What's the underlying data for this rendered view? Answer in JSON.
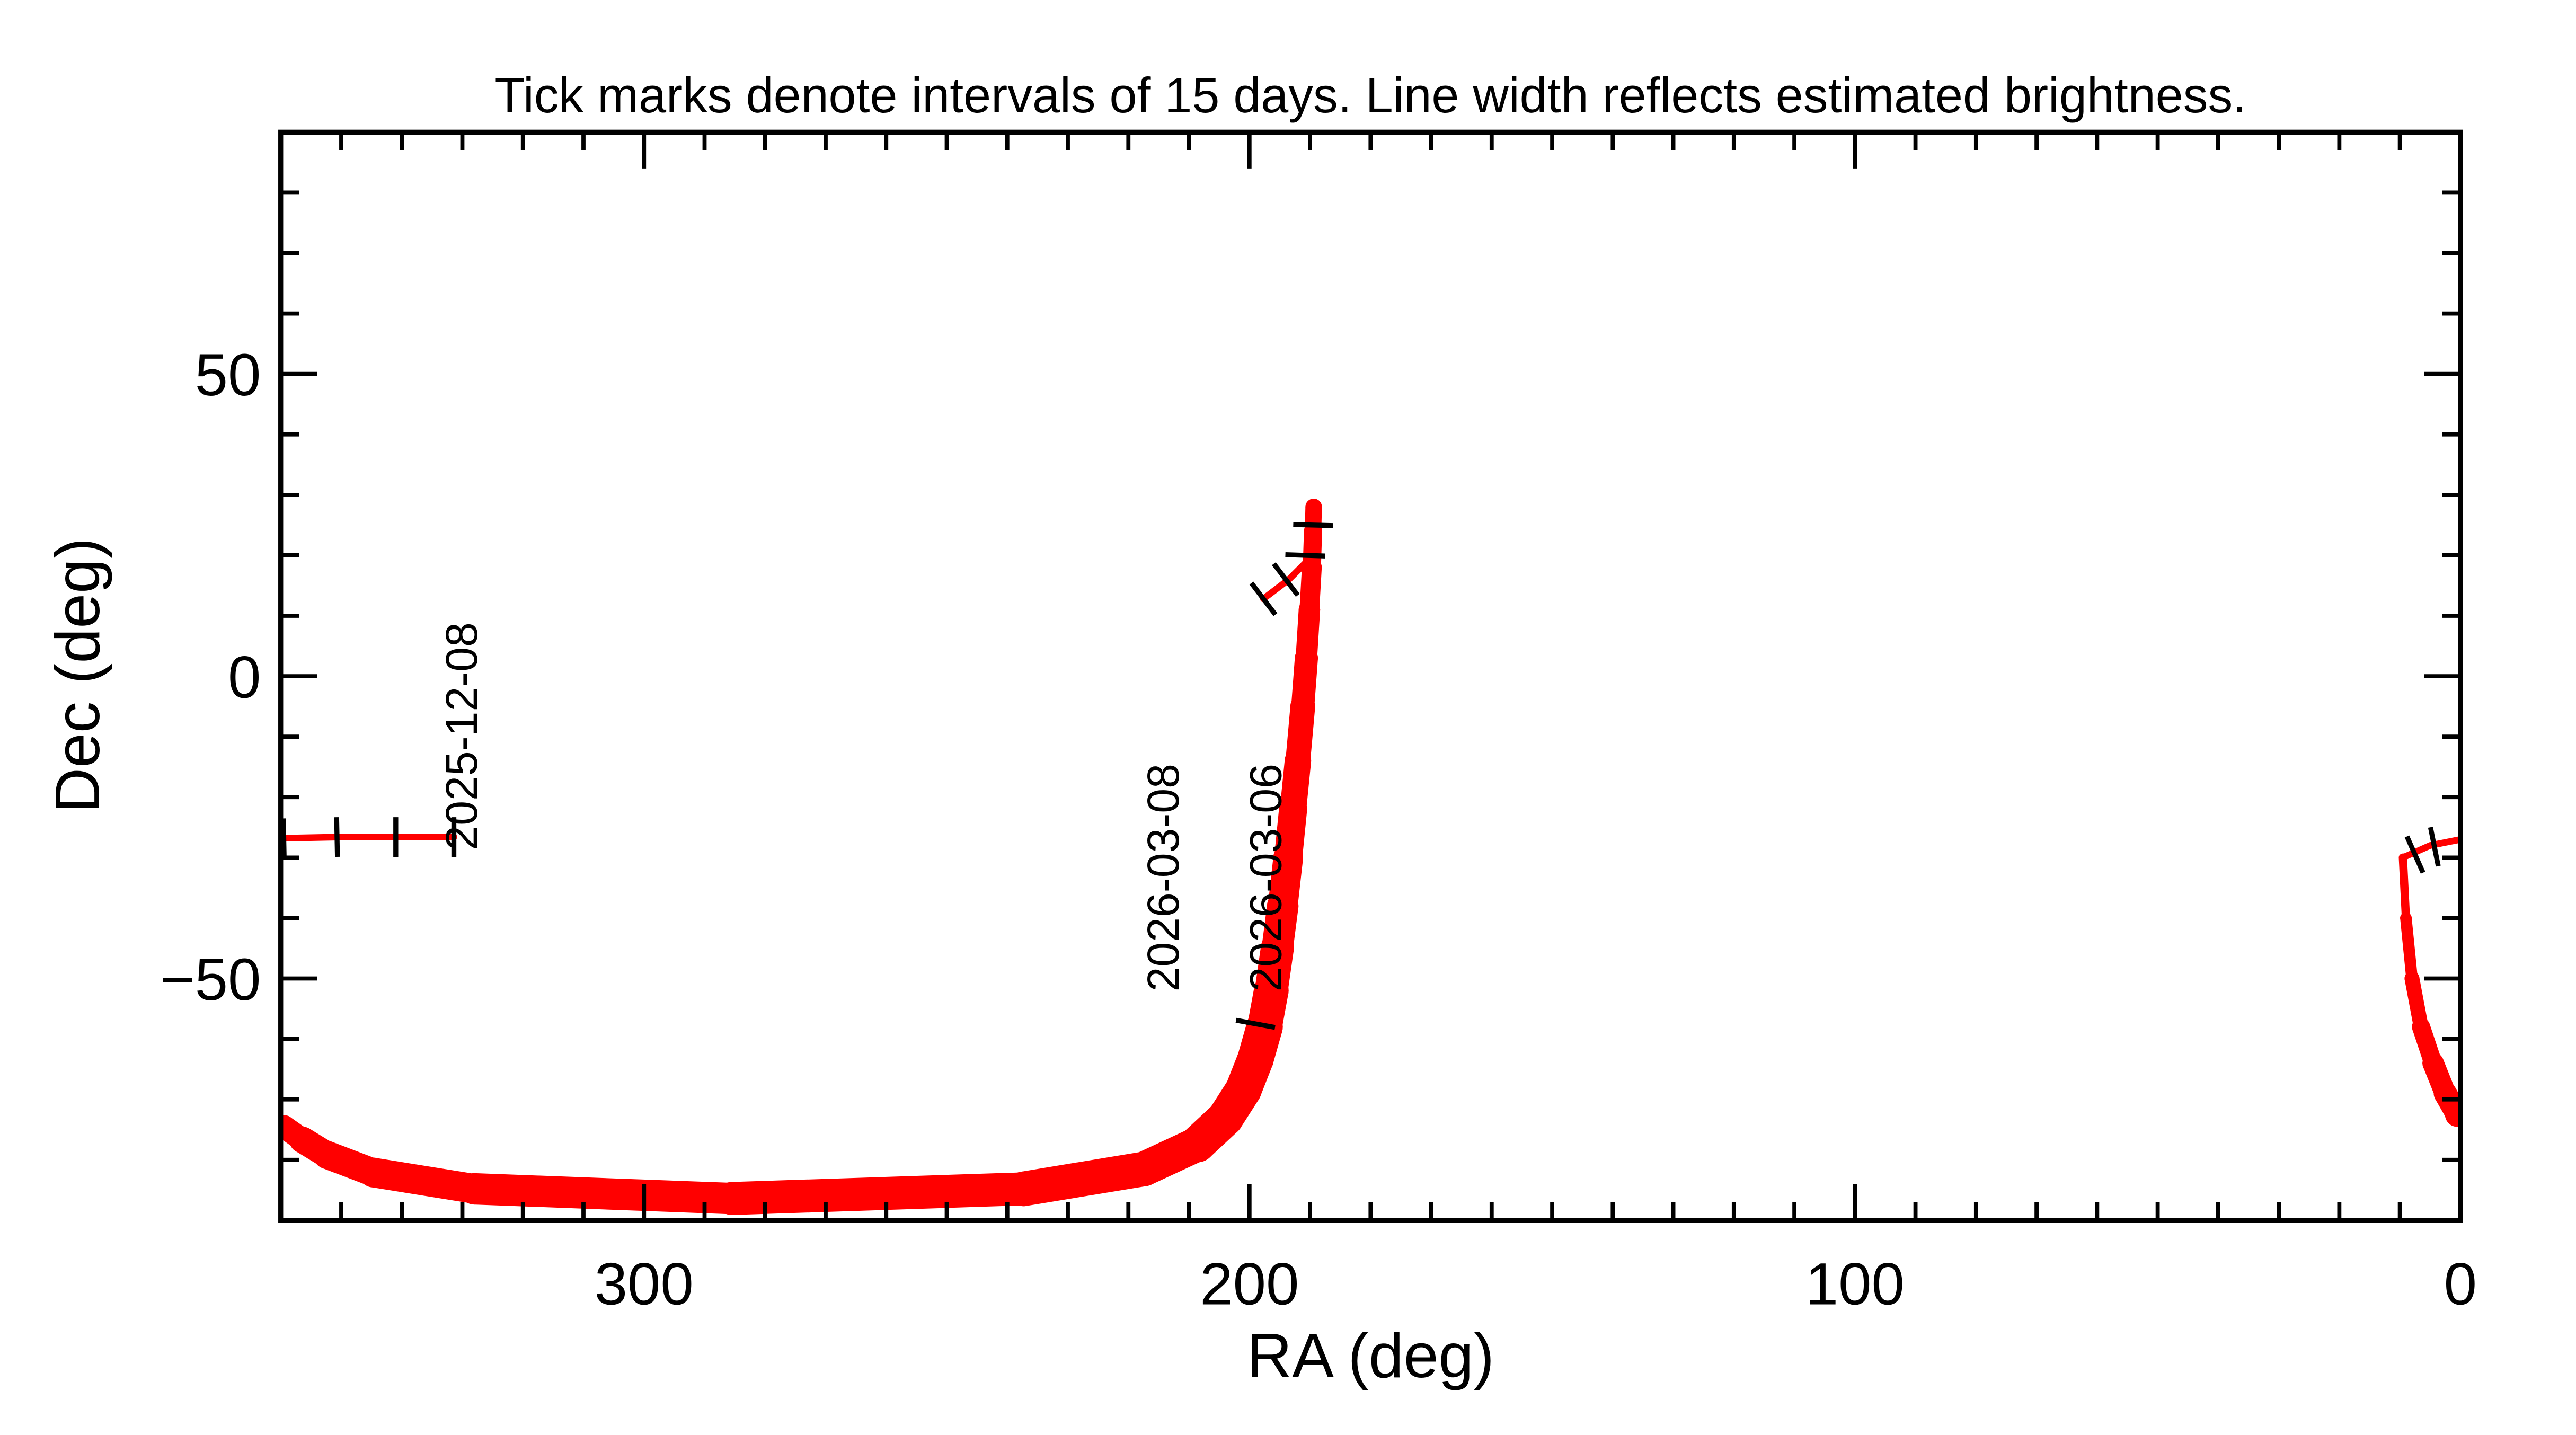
{
  "chart_data": {
    "type": "scatter",
    "title": "Tick marks denote intervals of 15 days.  Line width reflects estimated brightness.",
    "xlabel": "RA (deg)",
    "ylabel": "Dec (deg)",
    "xlim": [
      360,
      0
    ],
    "ylim": [
      -90,
      90
    ],
    "xticks": [
      300,
      200,
      100,
      0
    ],
    "xtick_labels": [
      "300",
      "200",
      "100",
      "0"
    ],
    "yticks": [
      50,
      0,
      -50
    ],
    "ytick_labels": [
      "50",
      "0",
      "−50"
    ],
    "x_minor_step": 10,
    "y_minor_step": 10,
    "grid": false,
    "track_color": "#ff0000",
    "tick_color": "#000000",
    "tracks": [
      {
        "points": [
          [
            360,
            -26.8,
            4
          ],
          [
            350,
            -26.6,
            4
          ],
          [
            340,
            -26.6,
            4
          ],
          [
            331.4,
            -26.6,
            4
          ]
        ]
      },
      {
        "points": [
          [
            0,
            -27,
            4
          ],
          [
            5,
            -28,
            4
          ],
          [
            9.5,
            -30,
            5
          ],
          [
            9,
            -40,
            7
          ],
          [
            8,
            -50,
            9
          ],
          [
            6.5,
            -58,
            11
          ],
          [
            4.5,
            -64,
            13
          ],
          [
            2.5,
            -69,
            14
          ],
          [
            0.5,
            -72.5,
            15
          ]
        ]
      },
      {
        "points": [
          [
            359.5,
            -74.5,
            14
          ],
          [
            356.4,
            -76.7,
            16
          ],
          [
            352.3,
            -79.2,
            17
          ],
          [
            344.7,
            -82.1,
            18
          ],
          [
            328,
            -84.8,
            19
          ],
          [
            285.5,
            -86.4,
            20
          ],
          [
            237.3,
            -84.8,
            21
          ],
          [
            217.4,
            -81.5,
            21
          ],
          [
            208.6,
            -77.4,
            22
          ],
          [
            204,
            -73.1,
            22
          ],
          [
            201,
            -68.4,
            22
          ],
          [
            199,
            -63.3,
            22
          ],
          [
            197.5,
            -58,
            22
          ],
          [
            196.4,
            -52,
            21
          ],
          [
            195.4,
            -45,
            20
          ],
          [
            194.5,
            -38,
            19
          ],
          [
            193.6,
            -30,
            18
          ],
          [
            192.8,
            -22,
            17
          ],
          [
            192,
            -14,
            16
          ],
          [
            191.2,
            -5,
            15
          ],
          [
            190.6,
            3,
            14
          ],
          [
            190.1,
            11,
            13
          ],
          [
            189.7,
            18,
            12
          ],
          [
            189.5,
            24,
            11
          ],
          [
            189.4,
            28,
            10
          ]
        ]
      },
      {
        "points": [
          [
            197.7,
            12.8,
            4
          ],
          [
            193.5,
            16,
            4
          ],
          [
            190.5,
            19,
            4
          ]
        ]
      }
    ],
    "date_ticks": [
      [
        359.5,
        -26.8
      ],
      [
        350.7,
        -26.6
      ],
      [
        341,
        -26.6
      ],
      [
        331.4,
        -26.6
      ],
      [
        7.5,
        -29.5
      ],
      [
        4.3,
        -28.2
      ],
      [
        199,
        -57.5
      ],
      [
        197.7,
        12.8
      ],
      [
        194,
        16
      ],
      [
        190.8,
        20
      ],
      [
        189.5,
        25
      ]
    ],
    "date_labels": [
      {
        "text": "2025-12-08",
        "ra": 331.4,
        "dec": -26.6
      },
      {
        "text": "2026-03-06",
        "ra": 198.6,
        "dec": -50
      },
      {
        "text": "2026-03-08",
        "ra": 197.0,
        "dec": -50
      }
    ]
  }
}
